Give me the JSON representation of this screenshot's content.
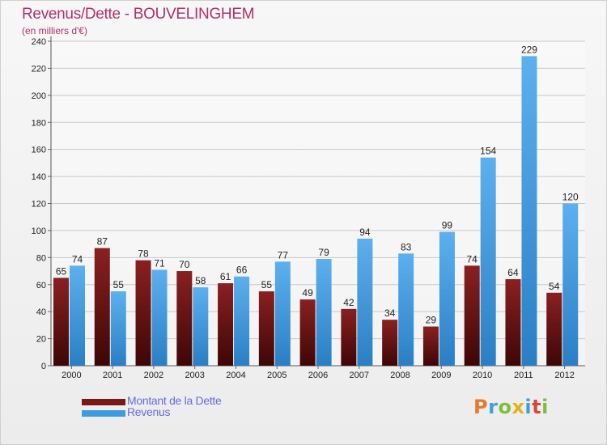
{
  "header": {
    "title": "Revenus/Dette - BOUVELINGHEM",
    "subtitle": "(en milliers d'€)"
  },
  "brand": {
    "letters": [
      "P",
      "r",
      "o",
      "x",
      "i",
      "t",
      "i"
    ],
    "colors": [
      "#e8792b",
      "#3fa0d8",
      "#7dbf3a",
      "#e2b21b",
      "#3fa0d8",
      "#d9453a",
      "#7dbf3a"
    ]
  },
  "colors": {
    "dette": "#7a1818",
    "revenus": "#3d9be0",
    "title": "#b0306a",
    "legend_text": "#6a6ae0"
  },
  "chart_data": {
    "type": "bar",
    "title": "Revenus/Dette - BOUVELINGHEM",
    "subtitle": "(en milliers d'€)",
    "categories": [
      "2000",
      "2001",
      "2002",
      "2003",
      "2004",
      "2005",
      "2006",
      "2007",
      "2008",
      "2009",
      "2010",
      "2011",
      "2012"
    ],
    "series": [
      {
        "name": "Montant de la Dette",
        "values": [
          65,
          87,
          78,
          70,
          61,
          55,
          49,
          42,
          34,
          29,
          74,
          64,
          54
        ]
      },
      {
        "name": "Revenus",
        "values": [
          74,
          55,
          71,
          58,
          66,
          77,
          79,
          94,
          83,
          99,
          154,
          229,
          120
        ]
      }
    ],
    "ylim": [
      0,
      240
    ],
    "yticks": [
      0,
      20,
      40,
      60,
      80,
      100,
      120,
      140,
      160,
      180,
      200,
      220,
      240
    ],
    "grid": true,
    "legend_position": "bottom-left"
  }
}
